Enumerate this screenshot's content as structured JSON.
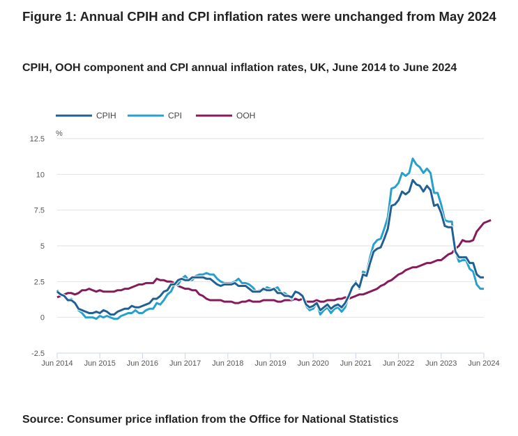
{
  "title": "Figure 1: Annual CPIH and CPI inflation rates were unchanged from May 2024",
  "subtitle": "CPIH, OOH component and CPI annual inflation rates, UK, June 2014 to June 2024",
  "source": "Source: Consumer price inflation from the Office for National Statistics",
  "chart_data": {
    "type": "line",
    "title": "CPIH, OOH component and CPI annual inflation rates, UK, June 2014 to June 2024",
    "xlabel": "",
    "ylabel": "%",
    "ylim": [
      -2.5,
      12.5
    ],
    "yticks": [
      "12.5",
      "10",
      "7.5",
      "5",
      "2.5",
      "0",
      "-2.5"
    ],
    "ytick_values": [
      12.5,
      10,
      7.5,
      5,
      2.5,
      0,
      -2.5
    ],
    "xticks": [
      "Jun 2014",
      "Jun 2015",
      "Jun 2016",
      "Jun 2017",
      "Jun 2018",
      "Jun 2019",
      "Jun 2020",
      "Jun 2021",
      "Jun 2022",
      "Jun 2023",
      "Jun 2024"
    ],
    "x_start": "Jun 2014",
    "x_end": "Jun 2024",
    "frequency": "monthly",
    "grid": true,
    "legend_position": "top-left",
    "series": [
      {
        "name": "CPIH",
        "color": "#206095",
        "values": [
          1.8,
          1.6,
          1.5,
          1.2,
          1.2,
          1.0,
          0.6,
          0.5,
          0.4,
          0.3,
          0.3,
          0.4,
          0.3,
          0.5,
          0.4,
          0.2,
          0.2,
          0.4,
          0.5,
          0.6,
          0.6,
          0.8,
          0.7,
          0.7,
          0.8,
          0.9,
          1.0,
          1.3,
          1.3,
          1.5,
          1.8,
          1.9,
          2.3,
          2.3,
          2.6,
          2.7,
          2.6,
          2.6,
          2.8,
          2.8,
          2.8,
          2.8,
          2.7,
          2.7,
          2.5,
          2.3,
          2.2,
          2.3,
          2.3,
          2.3,
          2.4,
          2.2,
          2.2,
          2.2,
          2.0,
          1.8,
          1.8,
          1.8,
          2.0,
          1.9,
          1.9,
          2.0,
          1.7,
          1.7,
          1.5,
          1.5,
          1.4,
          1.8,
          1.7,
          1.5,
          0.9,
          0.7,
          0.8,
          1.0,
          0.5,
          0.7,
          0.9,
          0.6,
          0.8,
          0.9,
          0.7,
          1.0,
          1.5,
          2.1,
          2.4,
          2.1,
          3.0,
          2.9,
          3.8,
          4.6,
          4.8,
          4.9,
          5.5,
          6.2,
          7.8,
          7.9,
          8.2,
          8.8,
          8.6,
          8.8,
          9.6,
          9.3,
          9.2,
          8.8,
          9.2,
          8.9,
          7.8,
          7.9,
          7.3,
          6.4,
          6.3,
          6.3,
          4.6,
          4.2,
          4.2,
          4.2,
          3.8,
          3.8,
          3.0,
          2.8,
          2.8
        ],
        "visible_labels_at_cursor": []
      },
      {
        "name": "CPI",
        "color": "#27a0cc",
        "values": [
          1.9,
          1.6,
          1.5,
          1.2,
          1.3,
          1.0,
          0.5,
          0.3,
          0.0,
          0.0,
          0.0,
          -0.1,
          0.1,
          0.0,
          0.1,
          0.0,
          -0.1,
          -0.1,
          0.1,
          0.2,
          0.3,
          0.3,
          0.5,
          0.3,
          0.3,
          0.5,
          0.6,
          0.6,
          1.0,
          0.9,
          1.2,
          1.6,
          1.8,
          2.3,
          2.3,
          2.7,
          2.9,
          2.6,
          2.6,
          2.9,
          3.0,
          3.0,
          3.1,
          3.0,
          3.0,
          2.7,
          2.5,
          2.4,
          2.4,
          2.4,
          2.5,
          2.7,
          2.4,
          2.4,
          2.3,
          2.1,
          1.8,
          1.9,
          1.9,
          2.1,
          2.0,
          2.0,
          2.1,
          1.7,
          1.7,
          1.5,
          1.3,
          1.8,
          1.7,
          1.5,
          0.8,
          0.5,
          0.6,
          1.0,
          0.2,
          0.5,
          0.7,
          0.3,
          0.6,
          0.7,
          0.4,
          0.7,
          1.5,
          2.1,
          2.5,
          2.0,
          3.2,
          3.1,
          4.2,
          5.1,
          5.4,
          5.5,
          6.2,
          7.0,
          9.0,
          9.1,
          9.4,
          10.1,
          9.9,
          10.1,
          11.1,
          10.7,
          10.5,
          10.1,
          10.4,
          10.1,
          8.7,
          8.7,
          7.9,
          6.8,
          6.7,
          6.7,
          4.6,
          3.9,
          4.0,
          4.0,
          3.4,
          3.2,
          2.3,
          2.0,
          2.0
        ]
      },
      {
        "name": "OOH",
        "color": "#871a5b",
        "values": [
          1.4,
          1.5,
          1.6,
          1.7,
          1.7,
          1.6,
          1.7,
          1.9,
          1.9,
          2.0,
          1.9,
          1.8,
          1.9,
          1.8,
          1.8,
          1.8,
          1.8,
          1.9,
          1.9,
          2.0,
          2.0,
          2.1,
          2.2,
          2.3,
          2.3,
          2.4,
          2.4,
          2.4,
          2.7,
          2.6,
          2.6,
          2.5,
          2.5,
          2.4,
          2.2,
          2.1,
          2.0,
          2.0,
          1.9,
          1.9,
          1.6,
          1.5,
          1.3,
          1.2,
          1.2,
          1.2,
          1.2,
          1.1,
          1.1,
          1.1,
          1.0,
          1.0,
          1.1,
          1.1,
          1.2,
          1.1,
          1.1,
          1.1,
          1.2,
          1.2,
          1.2,
          1.2,
          1.1,
          1.1,
          1.2,
          1.2,
          1.2,
          1.3,
          1.2,
          1.3,
          1.1,
          1.1,
          1.1,
          1.2,
          1.1,
          1.1,
          1.2,
          1.2,
          1.2,
          1.3,
          1.3,
          1.4,
          1.3,
          1.4,
          1.5,
          1.6,
          1.6,
          1.7,
          1.8,
          1.9,
          2.0,
          2.2,
          2.3,
          2.5,
          2.6,
          2.8,
          3.0,
          3.1,
          3.3,
          3.4,
          3.5,
          3.5,
          3.6,
          3.7,
          3.8,
          3.8,
          3.9,
          4.0,
          4.0,
          4.2,
          4.4,
          4.5,
          4.8,
          5.0,
          5.4,
          5.3,
          5.3,
          5.4,
          6.0,
          6.3,
          6.6,
          6.7,
          6.8
        ]
      }
    ]
  }
}
